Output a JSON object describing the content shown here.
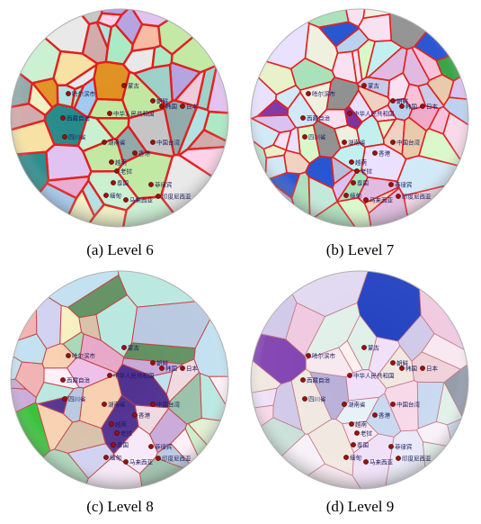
{
  "panels": [
    {
      "caption": "(a) Level 6",
      "palette": [
        "#f4a0c4",
        "#a7e9c2",
        "#b3a0e0",
        "#f7e0a0",
        "#c4c4c4",
        "#f0c8d8",
        "#9ad0c8",
        "#e0c0f0",
        "#c0e8a0",
        "#f8b8a0",
        "#d8d0f0",
        "#a0c8f0",
        "#f0f0c0",
        "#e8a8d0",
        "#b0e0e0",
        "#d0a8a8",
        "#c8f0d0",
        "#ffd0e8",
        "#8fa8a8",
        "#e8e8e8"
      ],
      "accents": [
        {
          "c": "#22cc22"
        },
        {
          "c": "#228888"
        },
        {
          "c": "#e09020"
        }
      ],
      "border": "#e01818",
      "border_width": 2.4
    },
    {
      "caption": "(b) Level 7",
      "palette": [
        "#f8e0f0",
        "#c0e8d8",
        "#d8c0f0",
        "#f0a8c8",
        "#e8f0c8",
        "#b8d0f0",
        "#f0d0c0",
        "#c8c8e8",
        "#a8e0b8",
        "#f8c0d8",
        "#d0e8f8",
        "#e0b8e0",
        "#f0f0e0",
        "#b8b8d8",
        "#e8c8a8",
        "#c0f0f0",
        "#f8d8e8",
        "#d8f8c8",
        "#909090",
        "#e8e0ff"
      ],
      "accents": [
        {
          "c": "#2050d0"
        },
        {
          "c": "#30a040"
        },
        {
          "c": "#8030a0"
        }
      ],
      "border": "#e01818",
      "border_width": 1.6
    },
    {
      "caption": "(c) Level 8",
      "palette": [
        "#f0d8e0",
        "#c8f0c8",
        "#e8c8f0",
        "#f8f0c0",
        "#b8e8e0",
        "#e8a8c8",
        "#d0d0f0",
        "#f8d0b0",
        "#c0e0f0",
        "#e0f0d0",
        "#f0c0e8",
        "#a8d8b8",
        "#d8c0a8",
        "#f8e8f8",
        "#b8c8e0",
        "#e8e8d0",
        "#f0b0b0",
        "#c8a8d8",
        "#98c0a8",
        "#fff0f8"
      ],
      "accents": [
        {
          "c": "#30c030"
        },
        {
          "c": "#503090"
        },
        {
          "c": "#609060"
        }
      ],
      "border": "#c04040",
      "border_width": 1.0
    },
    {
      "caption": "(d) Level 9",
      "palette": [
        "#f8e8f0",
        "#e0d8f0",
        "#f0c8e0",
        "#d8e8f0",
        "#f8f0f8",
        "#e8d0e8",
        "#c8d8f0",
        "#f0e0f8",
        "#e0f0e8",
        "#f8d8e8",
        "#d0c8e8",
        "#e8e8f8",
        "#f0d0d8",
        "#c8e0d8",
        "#fff0f0",
        "#d8d0f8",
        "#b8b0d8",
        "#e8f0f8",
        "#9098a8",
        "#f0e8e0"
      ],
      "accents": [
        {
          "c": "#2040c0"
        },
        {
          "c": "#303030"
        },
        {
          "c": "#8040b0"
        }
      ],
      "border": "#c07080",
      "border_width": 0.8
    }
  ],
  "places": [
    {
      "label": "蒙古"
    },
    {
      "label": "哈尔滨市"
    },
    {
      "label": "朝鲜"
    },
    {
      "label": "韩国"
    },
    {
      "label": "日本"
    },
    {
      "label": "中华人民共和国"
    },
    {
      "label": "西藏自治"
    },
    {
      "label": "四川省"
    },
    {
      "label": "湖南省"
    },
    {
      "label": "中国台湾"
    },
    {
      "label": "香港"
    },
    {
      "label": "越南"
    },
    {
      "label": "老挝"
    },
    {
      "label": "泰国"
    },
    {
      "label": "菲律宾"
    },
    {
      "label": "缅甸"
    },
    {
      "label": "马来西亚"
    },
    {
      "label": "印度尼西亚"
    }
  ]
}
